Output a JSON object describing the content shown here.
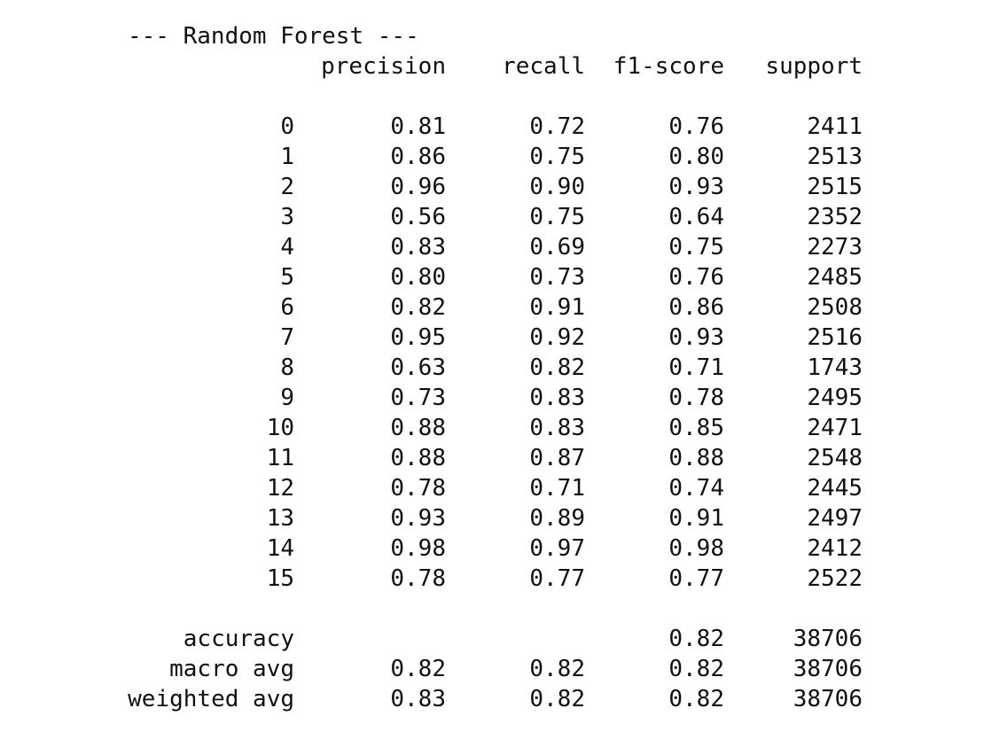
{
  "title": "--- Random Forest ---",
  "headers": {
    "precision": "precision",
    "recall": "recall",
    "f1": "f1-score",
    "support": "support"
  },
  "rows": [
    {
      "label": "0",
      "precision": "0.81",
      "recall": "0.72",
      "f1": "0.76",
      "support": "2411"
    },
    {
      "label": "1",
      "precision": "0.86",
      "recall": "0.75",
      "f1": "0.80",
      "support": "2513"
    },
    {
      "label": "2",
      "precision": "0.96",
      "recall": "0.90",
      "f1": "0.93",
      "support": "2515"
    },
    {
      "label": "3",
      "precision": "0.56",
      "recall": "0.75",
      "f1": "0.64",
      "support": "2352"
    },
    {
      "label": "4",
      "precision": "0.83",
      "recall": "0.69",
      "f1": "0.75",
      "support": "2273"
    },
    {
      "label": "5",
      "precision": "0.80",
      "recall": "0.73",
      "f1": "0.76",
      "support": "2485"
    },
    {
      "label": "6",
      "precision": "0.82",
      "recall": "0.91",
      "f1": "0.86",
      "support": "2508"
    },
    {
      "label": "7",
      "precision": "0.95",
      "recall": "0.92",
      "f1": "0.93",
      "support": "2516"
    },
    {
      "label": "8",
      "precision": "0.63",
      "recall": "0.82",
      "f1": "0.71",
      "support": "1743"
    },
    {
      "label": "9",
      "precision": "0.73",
      "recall": "0.83",
      "f1": "0.78",
      "support": "2495"
    },
    {
      "label": "10",
      "precision": "0.88",
      "recall": "0.83",
      "f1": "0.85",
      "support": "2471"
    },
    {
      "label": "11",
      "precision": "0.88",
      "recall": "0.87",
      "f1": "0.88",
      "support": "2548"
    },
    {
      "label": "12",
      "precision": "0.78",
      "recall": "0.71",
      "f1": "0.74",
      "support": "2445"
    },
    {
      "label": "13",
      "precision": "0.93",
      "recall": "0.89",
      "f1": "0.91",
      "support": "2497"
    },
    {
      "label": "14",
      "precision": "0.98",
      "recall": "0.97",
      "f1": "0.98",
      "support": "2412"
    },
    {
      "label": "15",
      "precision": "0.78",
      "recall": "0.77",
      "f1": "0.77",
      "support": "2522"
    }
  ],
  "summary": [
    {
      "label": "accuracy",
      "precision": "",
      "recall": "",
      "f1": "0.82",
      "support": "38706"
    },
    {
      "label": "macro avg",
      "precision": "0.82",
      "recall": "0.82",
      "f1": "0.82",
      "support": "38706"
    },
    {
      "label": "weighted avg",
      "precision": "0.83",
      "recall": "0.82",
      "f1": "0.82",
      "support": "38706"
    }
  ]
}
